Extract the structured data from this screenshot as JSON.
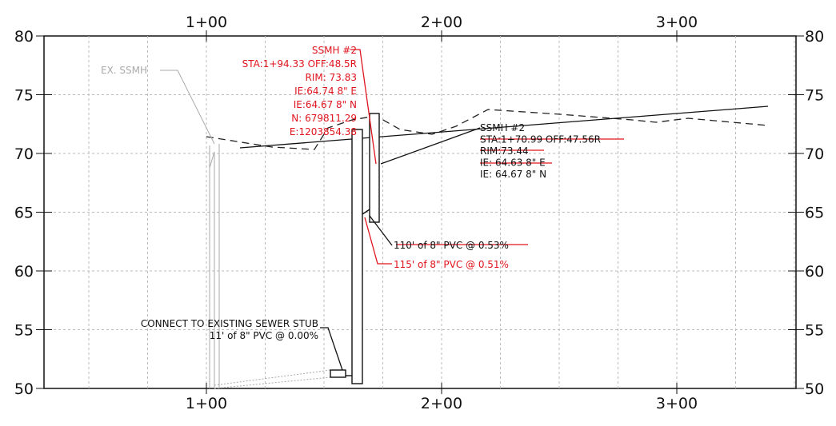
{
  "axis": {
    "left_ticks": [
      "80",
      "75",
      "70",
      "65",
      "60",
      "55",
      "50"
    ],
    "right_ticks": [
      "80",
      "75",
      "70",
      "65",
      "60",
      "55",
      "50"
    ],
    "top_stations": [
      "1+00",
      "2+00",
      "3+00"
    ],
    "bottom_stations": [
      "1+00",
      "2+00",
      "3+00"
    ]
  },
  "annotations": {
    "ex_ssmh": "EX. SSMH",
    "proposed_ssmh": [
      "SSMH #2",
      "STA:1+94.33 OFF:48.5R",
      "RIM: 73.83",
      "IE:64.74 8\" E",
      "IE:64.67 8\" N",
      "N: 679811.29",
      "E:1203854.38"
    ],
    "existing_ssmh": [
      "SSMH #2",
      "STA:1+70.99 OFF:47.56R",
      "RIM:73.44",
      "IE: 64.63 8\" E",
      "IE: 64.67 8\" N"
    ],
    "pipe_old": "110' of 8\" PVC @ 0.53%",
    "pipe_new": "115' of 8\" PVC @ 0.51%",
    "connect": [
      "CONNECT TO EXISTING SEWER STUB",
      "11' of 8\" PVC @ 0.00%"
    ]
  }
}
